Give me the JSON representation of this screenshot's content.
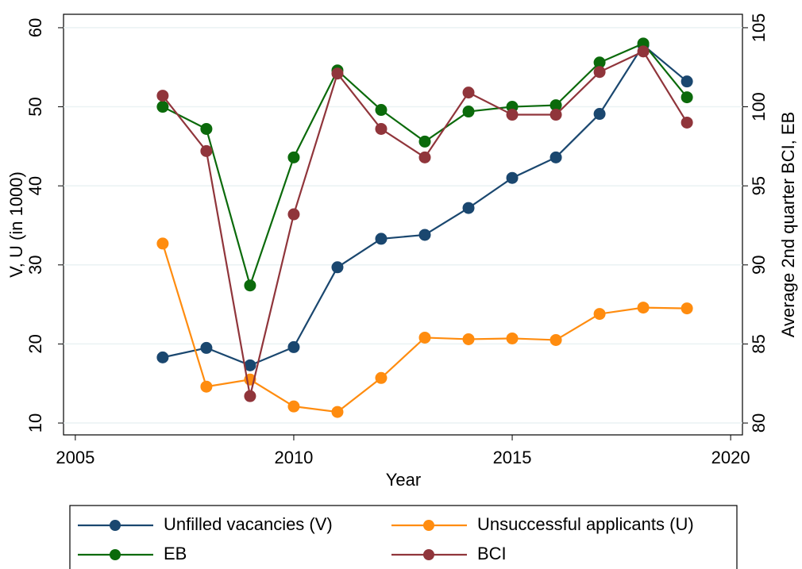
{
  "chart_data": {
    "type": "line",
    "x": [
      2007,
      2008,
      2009,
      2010,
      2011,
      2012,
      2013,
      2014,
      2015,
      2016,
      2017,
      2018,
      2019
    ],
    "series": [
      {
        "name": "Unfilled vacancies (V)",
        "color": "#1a476f",
        "values": [
          18.3,
          19.5,
          17.3,
          19.6,
          29.7,
          33.3,
          33.8,
          37.2,
          41.0,
          43.6,
          49.1,
          57.8,
          53.2
        ]
      },
      {
        "name": "Unsuccessful applicants (U)",
        "color": "#ff8c0f",
        "values": [
          32.7,
          14.6,
          15.5,
          12.1,
          11.4,
          15.7,
          20.8,
          20.6,
          20.7,
          20.5,
          23.8,
          24.6,
          24.5
        ]
      },
      {
        "name": "EB",
        "color": "#0b6a0b",
        "axis": "y2",
        "values": [
          100.0,
          98.6,
          88.7,
          96.8,
          102.3,
          99.8,
          97.8,
          99.7,
          100.0,
          100.1,
          102.8,
          104.0,
          100.6
        ]
      },
      {
        "name": "BCI",
        "color": "#90353b",
        "axis": "y2",
        "values": [
          100.7,
          97.2,
          81.7,
          93.2,
          102.1,
          98.6,
          96.8,
          100.9,
          99.5,
          99.5,
          102.2,
          103.5,
          99.0
        ]
      }
    ],
    "x_label": "Year",
    "y_label": "V, U (in 1000)",
    "y2_label": "Average 2nd quarter BCI, EB",
    "xlim": [
      2004.73,
      2020.27
    ],
    "xticks": [
      2005,
      2010,
      2015,
      2020
    ],
    "ylim": [
      8.5,
      61.7
    ],
    "yticks": [
      10,
      20,
      30,
      40,
      50,
      60
    ],
    "y2lim": [
      79.25,
      105.85
    ],
    "y2ticks": [
      80,
      85,
      90,
      95,
      100,
      105
    ],
    "grid": true,
    "legend": "bottom"
  }
}
